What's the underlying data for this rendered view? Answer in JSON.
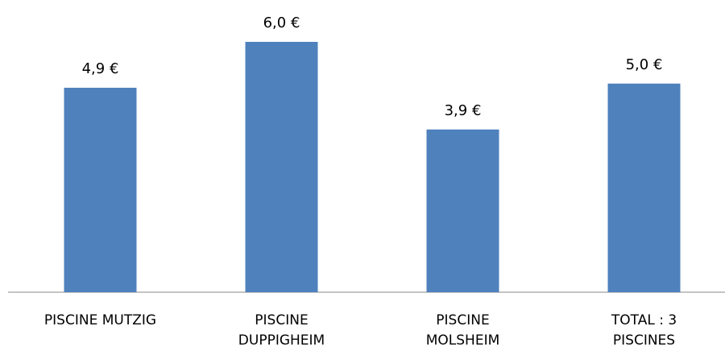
{
  "chart_data": {
    "type": "bar",
    "categories": [
      "PISCINE MUTZIG",
      "PISCINE DUPPIGHEIM",
      "PISCINE MOLSHEIM",
      "TOTAL : 3 PISCINES"
    ],
    "values": [
      4.9,
      6.0,
      3.9,
      5.0
    ],
    "value_labels": [
      "4,9 €",
      "6,0 €",
      "3,9 €",
      "5,0 €"
    ],
    "color": "#4f81bd"
  }
}
